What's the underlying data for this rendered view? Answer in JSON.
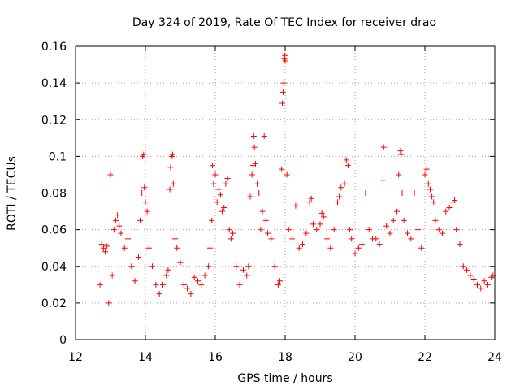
{
  "chart_data": {
    "type": "scatter",
    "title": "Day 324 of 2019, Rate Of TEC Index for receiver drao",
    "xlabel": "GPS time / hours",
    "ylabel": "ROTI / TECUs",
    "xlim": [
      12,
      24
    ],
    "ylim": [
      0,
      0.16
    ],
    "grid": true,
    "marker": "+",
    "color": "#ff0000",
    "x_ticks": [
      {
        "value": 12,
        "label": "12"
      },
      {
        "value": 14,
        "label": "14"
      },
      {
        "value": 16,
        "label": "16"
      },
      {
        "value": 18,
        "label": "18"
      },
      {
        "value": 20,
        "label": "20"
      },
      {
        "value": 22,
        "label": "22"
      },
      {
        "value": 24,
        "label": "24"
      }
    ],
    "y_ticks": [
      {
        "value": 0,
        "label": "0"
      },
      {
        "value": 0.02,
        "label": "0.02"
      },
      {
        "value": 0.04,
        "label": "0.04"
      },
      {
        "value": 0.06,
        "label": "0.06"
      },
      {
        "value": 0.08,
        "label": "0.08"
      },
      {
        "value": 0.1,
        "label": "0.1"
      },
      {
        "value": 0.12,
        "label": "0.12"
      },
      {
        "value": 0.14,
        "label": "0.14"
      },
      {
        "value": 0.16,
        "label": "0.16"
      }
    ],
    "series": [
      {
        "name": "ROTI",
        "points": [
          [
            12.7,
            0.03
          ],
          [
            12.75,
            0.052
          ],
          [
            12.8,
            0.05
          ],
          [
            12.85,
            0.048
          ],
          [
            12.9,
            0.051
          ],
          [
            12.95,
            0.02
          ],
          [
            13.0,
            0.09
          ],
          [
            13.05,
            0.035
          ],
          [
            13.1,
            0.06
          ],
          [
            13.15,
            0.065
          ],
          [
            13.2,
            0.068
          ],
          [
            13.25,
            0.062
          ],
          [
            13.3,
            0.058
          ],
          [
            13.4,
            0.05
          ],
          [
            13.5,
            0.055
          ],
          [
            13.6,
            0.04
          ],
          [
            13.7,
            0.032
          ],
          [
            13.8,
            0.045
          ],
          [
            13.85,
            0.065
          ],
          [
            13.9,
            0.08
          ],
          [
            13.92,
            0.1
          ],
          [
            13.95,
            0.101
          ],
          [
            13.97,
            0.083
          ],
          [
            14.0,
            0.075
          ],
          [
            14.05,
            0.07
          ],
          [
            14.1,
            0.05
          ],
          [
            14.2,
            0.04
          ],
          [
            14.3,
            0.03
          ],
          [
            14.4,
            0.025
          ],
          [
            14.5,
            0.03
          ],
          [
            14.6,
            0.035
          ],
          [
            14.65,
            0.038
          ],
          [
            14.7,
            0.082
          ],
          [
            14.72,
            0.094
          ],
          [
            14.75,
            0.1
          ],
          [
            14.78,
            0.101
          ],
          [
            14.8,
            0.085
          ],
          [
            14.85,
            0.055
          ],
          [
            14.9,
            0.05
          ],
          [
            15.0,
            0.042
          ],
          [
            15.1,
            0.03
          ],
          [
            15.2,
            0.028
          ],
          [
            15.3,
            0.025
          ],
          [
            15.4,
            0.034
          ],
          [
            15.5,
            0.032
          ],
          [
            15.6,
            0.03
          ],
          [
            15.7,
            0.035
          ],
          [
            15.8,
            0.04
          ],
          [
            15.85,
            0.05
          ],
          [
            15.9,
            0.065
          ],
          [
            15.92,
            0.095
          ],
          [
            15.95,
            0.085
          ],
          [
            16.0,
            0.09
          ],
          [
            16.05,
            0.075
          ],
          [
            16.1,
            0.082
          ],
          [
            16.15,
            0.079
          ],
          [
            16.2,
            0.07
          ],
          [
            16.25,
            0.072
          ],
          [
            16.3,
            0.085
          ],
          [
            16.35,
            0.088
          ],
          [
            16.4,
            0.06
          ],
          [
            16.45,
            0.055
          ],
          [
            16.5,
            0.058
          ],
          [
            16.6,
            0.04
          ],
          [
            16.7,
            0.03
          ],
          [
            16.8,
            0.038
          ],
          [
            16.9,
            0.035
          ],
          [
            16.95,
            0.04
          ],
          [
            17.0,
            0.078
          ],
          [
            17.05,
            0.09
          ],
          [
            17.08,
            0.095
          ],
          [
            17.1,
            0.111
          ],
          [
            17.12,
            0.105
          ],
          [
            17.15,
            0.096
          ],
          [
            17.2,
            0.085
          ],
          [
            17.25,
            0.08
          ],
          [
            17.3,
            0.06
          ],
          [
            17.35,
            0.07
          ],
          [
            17.4,
            0.111
          ],
          [
            17.45,
            0.065
          ],
          [
            17.5,
            0.058
          ],
          [
            17.6,
            0.055
          ],
          [
            17.7,
            0.04
          ],
          [
            17.8,
            0.03
          ],
          [
            17.85,
            0.032
          ],
          [
            17.9,
            0.093
          ],
          [
            17.92,
            0.129
          ],
          [
            17.94,
            0.135
          ],
          [
            17.96,
            0.14
          ],
          [
            17.98,
            0.153
          ],
          [
            17.99,
            0.155
          ],
          [
            18.0,
            0.152
          ],
          [
            18.05,
            0.09
          ],
          [
            18.1,
            0.06
          ],
          [
            18.2,
            0.055
          ],
          [
            18.3,
            0.073
          ],
          [
            18.4,
            0.05
          ],
          [
            18.5,
            0.052
          ],
          [
            18.6,
            0.058
          ],
          [
            18.7,
            0.075
          ],
          [
            18.75,
            0.077
          ],
          [
            18.8,
            0.063
          ],
          [
            18.9,
            0.06
          ],
          [
            19.0,
            0.063
          ],
          [
            19.05,
            0.069
          ],
          [
            19.1,
            0.067
          ],
          [
            19.2,
            0.055
          ],
          [
            19.3,
            0.05
          ],
          [
            19.4,
            0.06
          ],
          [
            19.5,
            0.075
          ],
          [
            19.55,
            0.078
          ],
          [
            19.6,
            0.083
          ],
          [
            19.7,
            0.085
          ],
          [
            19.75,
            0.098
          ],
          [
            19.8,
            0.095
          ],
          [
            19.85,
            0.06
          ],
          [
            19.9,
            0.055
          ],
          [
            20.0,
            0.047
          ],
          [
            20.1,
            0.05
          ],
          [
            20.2,
            0.052
          ],
          [
            20.3,
            0.08
          ],
          [
            20.4,
            0.06
          ],
          [
            20.5,
            0.055
          ],
          [
            20.6,
            0.055
          ],
          [
            20.7,
            0.052
          ],
          [
            20.8,
            0.087
          ],
          [
            20.82,
            0.105
          ],
          [
            20.9,
            0.062
          ],
          [
            21.0,
            0.058
          ],
          [
            21.1,
            0.065
          ],
          [
            21.2,
            0.07
          ],
          [
            21.25,
            0.09
          ],
          [
            21.3,
            0.103
          ],
          [
            21.32,
            0.101
          ],
          [
            21.35,
            0.08
          ],
          [
            21.4,
            0.065
          ],
          [
            21.5,
            0.058
          ],
          [
            21.6,
            0.055
          ],
          [
            21.7,
            0.08
          ],
          [
            21.8,
            0.06
          ],
          [
            21.9,
            0.05
          ],
          [
            22.0,
            0.09
          ],
          [
            22.05,
            0.093
          ],
          [
            22.1,
            0.085
          ],
          [
            22.15,
            0.082
          ],
          [
            22.2,
            0.078
          ],
          [
            22.25,
            0.075
          ],
          [
            22.3,
            0.065
          ],
          [
            22.4,
            0.06
          ],
          [
            22.5,
            0.058
          ],
          [
            22.6,
            0.07
          ],
          [
            22.7,
            0.072
          ],
          [
            22.8,
            0.075
          ],
          [
            22.85,
            0.076
          ],
          [
            22.9,
            0.06
          ],
          [
            23.0,
            0.052
          ],
          [
            23.1,
            0.04
          ],
          [
            23.2,
            0.038
          ],
          [
            23.3,
            0.035
          ],
          [
            23.4,
            0.033
          ],
          [
            23.5,
            0.03
          ],
          [
            23.6,
            0.028
          ],
          [
            23.7,
            0.032
          ],
          [
            23.8,
            0.03
          ],
          [
            23.9,
            0.034
          ],
          [
            23.95,
            0.035
          ]
        ]
      }
    ]
  }
}
